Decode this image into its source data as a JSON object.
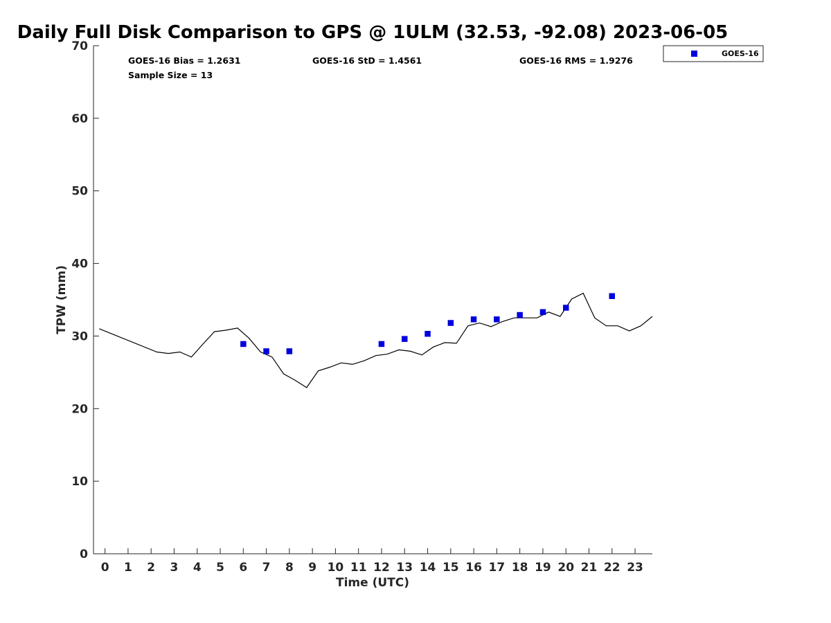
{
  "chart_data": {
    "type": "scatter",
    "title": "Daily Full Disk Comparison to GPS @ 1ULM (32.53, -92.08) 2023-06-05",
    "xlabel": "Time (UTC)",
    "ylabel": "TPW (mm)",
    "xlim": [
      -0.5,
      23.75
    ],
    "ylim": [
      0,
      70
    ],
    "x_ticks": [
      0,
      1,
      2,
      3,
      4,
      5,
      6,
      7,
      8,
      9,
      10,
      11,
      12,
      13,
      14,
      15,
      16,
      17,
      18,
      19,
      20,
      21,
      22,
      23
    ],
    "y_ticks": [
      0,
      10,
      20,
      30,
      40,
      50,
      60,
      70
    ],
    "grid": false,
    "legend_position": "outside-top-right",
    "stats": {
      "bias": "GOES-16 Bias = 1.2631",
      "std": "GOES-16 StD = 1.4561",
      "rms": "GOES-16 RMS = 1.9276",
      "sample_size": "Sample Size = 13"
    },
    "series": [
      {
        "name": "GOES-16",
        "style": "square-markers",
        "color": "#0000dd",
        "x": [
          6,
          7,
          8,
          12,
          13,
          14,
          15,
          16,
          17,
          18,
          19,
          20,
          22
        ],
        "y": [
          28.9,
          27.9,
          27.9,
          28.9,
          29.6,
          30.3,
          31.8,
          32.3,
          32.3,
          32.9,
          33.3,
          33.9,
          35.5
        ]
      },
      {
        "style": "line",
        "color": "#000000",
        "x": [
          -0.25,
          2.25,
          2.75,
          3.25,
          3.75,
          4.25,
          4.75,
          5.25,
          5.75,
          6.25,
          6.75,
          7.25,
          7.75,
          8.25,
          8.75,
          9.25,
          9.75,
          10.25,
          10.75,
          11.25,
          11.75,
          12.25,
          12.75,
          13.25,
          13.75,
          14.25,
          14.75,
          15.25,
          15.75,
          16.25,
          16.75,
          17.25,
          17.75,
          18.25,
          18.75,
          19.25,
          19.75,
          20.25,
          20.75,
          21.25,
          21.75,
          22.25,
          22.75,
          23.25,
          23.75
        ],
        "y": [
          31.0,
          27.8,
          27.6,
          27.8,
          27.1,
          28.9,
          30.6,
          30.8,
          31.1,
          29.7,
          27.8,
          27.1,
          24.8,
          23.9,
          22.9,
          25.2,
          25.7,
          26.3,
          26.1,
          26.6,
          27.3,
          27.5,
          28.1,
          27.9,
          27.4,
          28.5,
          29.1,
          29.0,
          31.4,
          31.8,
          31.3,
          32.0,
          32.5,
          32.5,
          32.5,
          33.3,
          32.7,
          35.1,
          35.9,
          32.5,
          31.4,
          31.4,
          30.7,
          31.4,
          32.7
        ]
      }
    ]
  }
}
